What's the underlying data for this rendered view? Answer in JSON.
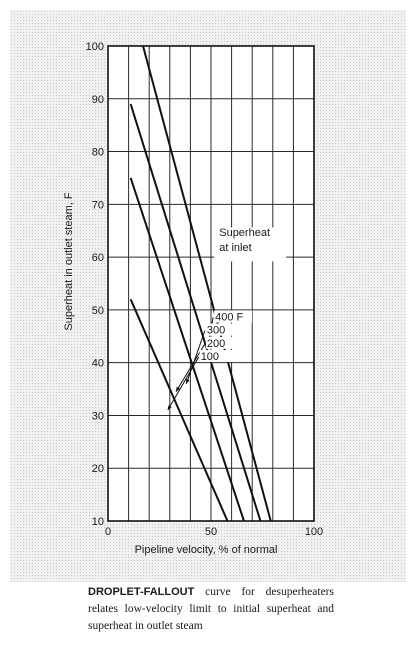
{
  "chart_data": {
    "type": "line",
    "xlabel": "Pipeline velocity, % of normal",
    "ylabel": "Superheat in outlet steam, F",
    "xlim": [
      0,
      100
    ],
    "ylim": [
      10,
      100
    ],
    "x_ticks": [
      "0",
      "50",
      "100"
    ],
    "y_ticks": [
      "10",
      "20",
      "30",
      "40",
      "50",
      "60",
      "70",
      "80",
      "90",
      "100"
    ],
    "grid": true,
    "legend_title": [
      "Superheat",
      "at inlet"
    ],
    "series": [
      {
        "name": "400 F",
        "x": [
          17,
          79
        ],
        "y": [
          100,
          10
        ]
      },
      {
        "name": "300",
        "x": [
          11,
          74
        ],
        "y": [
          89,
          10
        ]
      },
      {
        "name": "200",
        "x": [
          11,
          66
        ],
        "y": [
          75,
          10
        ]
      },
      {
        "name": "100",
        "x": [
          11,
          58
        ],
        "y": [
          52,
          10
        ]
      }
    ]
  },
  "caption": {
    "lead": "DROPLET-FALLOUT",
    "text": " curve for desuperheaters relates low-velocity limit to initial superheat and superheat in outlet steam"
  }
}
